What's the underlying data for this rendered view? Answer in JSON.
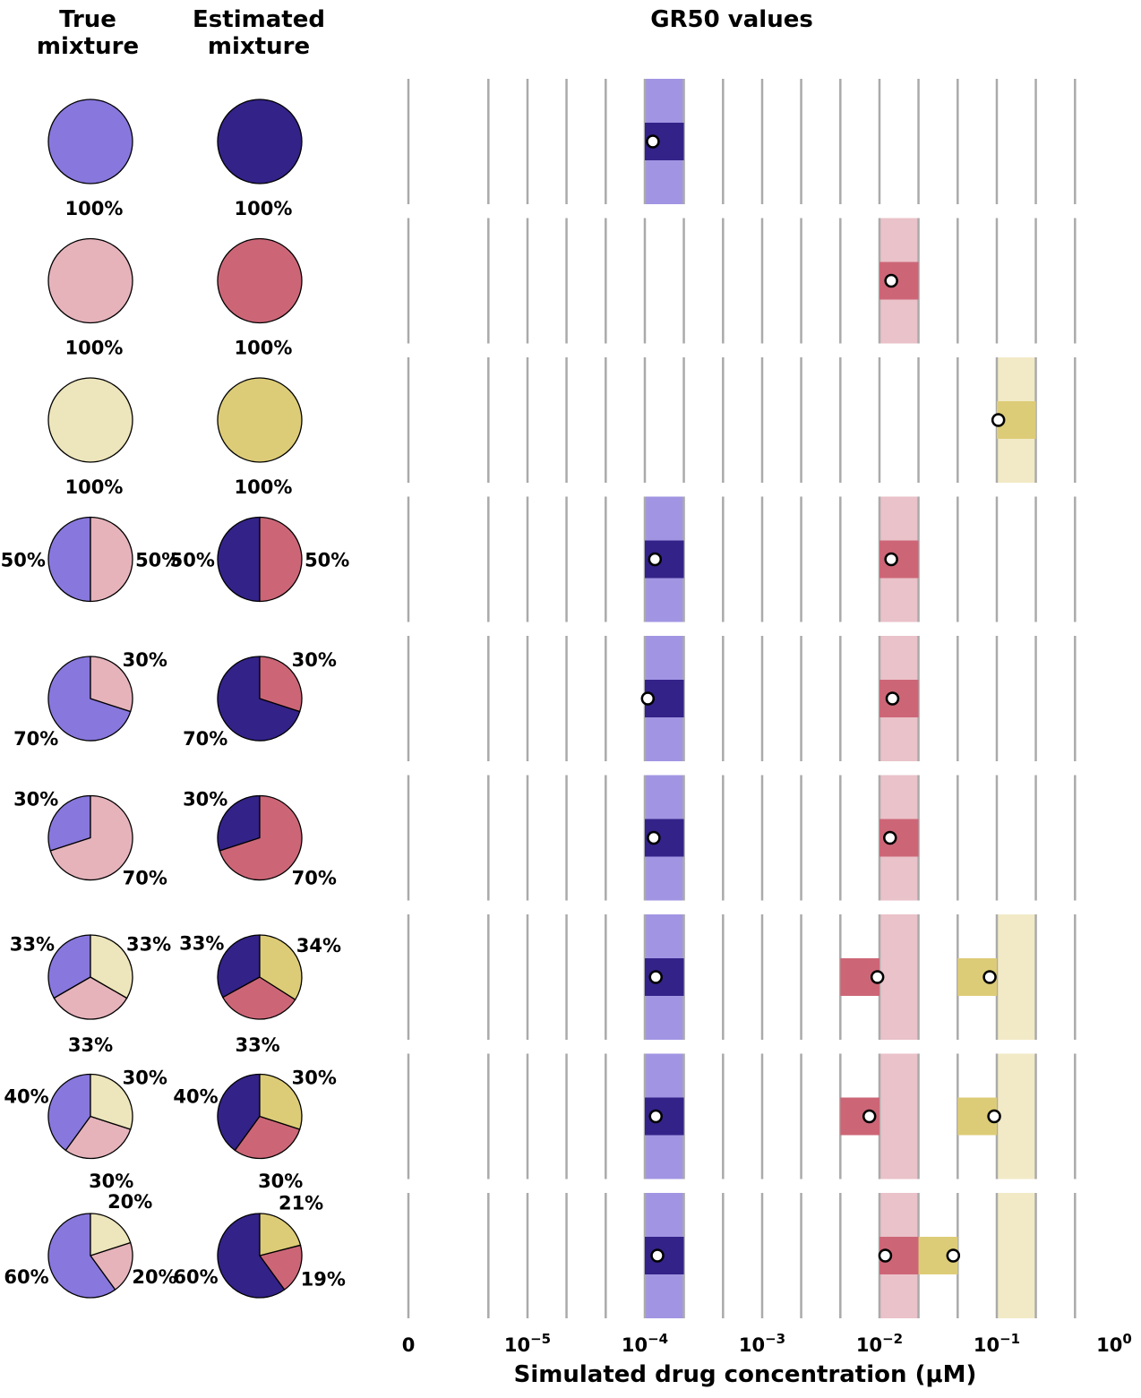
{
  "headers": {
    "true_mixture": [
      "True",
      "mixture"
    ],
    "estimated_mixture": [
      "Estimated",
      "mixture"
    ],
    "gr50": "GR50 values"
  },
  "colors": {
    "estimated": [
      "#332288",
      "#CC6677",
      "#DDCC77"
    ],
    "true": [
      "#8877DD",
      "#E6B3BB",
      "#EDE5BB"
    ],
    "band_light": [
      "#A195E3",
      "#EAC2C9",
      "#F2EAC6"
    ],
    "grid": "#AAAAAA",
    "marker_fill": "#FFFFFF",
    "marker_edge": "#000000"
  },
  "chart_data": {
    "type": "scatter",
    "xlabel": "Simulated  drug  concentration  (μM)",
    "xscale": "symlog",
    "xticks": [
      {
        "value": 0,
        "label": "0"
      },
      {
        "value": 1e-05,
        "label": "10",
        "exp": "−5"
      },
      {
        "value": 0.0001,
        "label": "10",
        "exp": "−4"
      },
      {
        "value": 0.001,
        "label": "10",
        "exp": "−3"
      },
      {
        "value": 0.01,
        "label": "10",
        "exp": "−2"
      },
      {
        "value": 0.1,
        "label": "10",
        "exp": "−1"
      },
      {
        "value": 1,
        "label": "10",
        "exp": "0"
      }
    ],
    "subpopulations": [
      {
        "true_gr50_range": [
          0.0001,
          0.000215
        ]
      },
      {
        "true_gr50_range": [
          0.01,
          0.0215
        ]
      },
      {
        "true_gr50_range": [
          0.1,
          0.215
        ]
      }
    ],
    "rows": [
      {
        "true_mix": [
          100,
          0,
          0
        ],
        "true_labels": [
          "100%"
        ],
        "est_mix": [
          100,
          0,
          0
        ],
        "est_labels": [
          "100%"
        ],
        "bands": [
          [
            0
          ],
          [],
          []
        ],
        "estimates": [
          {
            "pop": 0,
            "range": [
              0.0001,
              0.000215
            ],
            "value": 0.000117
          }
        ]
      },
      {
        "true_mix": [
          0,
          100,
          0
        ],
        "true_labels": [
          "100%"
        ],
        "est_mix": [
          0,
          100,
          0
        ],
        "est_labels": [
          "100%"
        ],
        "bands": [
          [
            1
          ],
          [],
          []
        ],
        "estimates": [
          {
            "pop": 1,
            "range": [
              0.01,
              0.0215
            ],
            "value": 0.0126
          }
        ]
      },
      {
        "true_mix": [
          0,
          0,
          100
        ],
        "true_labels": [
          "100%"
        ],
        "est_mix": [
          0,
          0,
          100
        ],
        "est_labels": [
          "100%"
        ],
        "bands": [
          [
            2
          ],
          [],
          []
        ],
        "estimates": [
          {
            "pop": 2,
            "range": [
              0.1,
              0.215
            ],
            "value": 0.103
          }
        ]
      },
      {
        "true_mix": [
          50,
          50,
          0
        ],
        "true_labels": [
          "50%",
          "50%"
        ],
        "est_mix": [
          50,
          50,
          0
        ],
        "est_labels": [
          "50%",
          "50%"
        ],
        "bands": [
          [
            0,
            1
          ],
          [],
          []
        ],
        "estimates": [
          {
            "pop": 0,
            "range": [
              0.0001,
              0.000215
            ],
            "value": 0.000122
          },
          {
            "pop": 1,
            "range": [
              0.01,
              0.0215
            ],
            "value": 0.0126
          }
        ]
      },
      {
        "true_mix": [
          70,
          30,
          0
        ],
        "true_labels": [
          "70%",
          "30%"
        ],
        "est_mix": [
          70,
          30,
          0
        ],
        "est_labels": [
          "70%",
          "30%"
        ],
        "bands": [
          [
            0,
            1
          ],
          [],
          []
        ],
        "estimates": [
          {
            "pop": 0,
            "range": [
              0.0001,
              0.000215
            ],
            "value": 0.000106
          },
          {
            "pop": 1,
            "range": [
              0.01,
              0.0215
            ],
            "value": 0.0129
          }
        ]
      },
      {
        "true_mix": [
          30,
          70,
          0
        ],
        "true_labels": [
          "30%",
          "70%"
        ],
        "est_mix": [
          30,
          70,
          0
        ],
        "est_labels": [
          "30%",
          "70%"
        ],
        "bands": [
          [
            0,
            1
          ],
          [],
          []
        ],
        "estimates": [
          {
            "pop": 0,
            "range": [
              0.0001,
              0.000215
            ],
            "value": 0.000119
          },
          {
            "pop": 1,
            "range": [
              0.01,
              0.0215
            ],
            "value": 0.0123
          }
        ]
      },
      {
        "true_mix": [
          33,
          33,
          33
        ],
        "true_labels": [
          "33%",
          "33%",
          "33%"
        ],
        "est_mix": [
          33,
          33,
          34
        ],
        "est_labels": [
          "33%",
          "33%",
          "34%"
        ],
        "bands": [
          [
            0,
            1,
            2
          ],
          [],
          []
        ],
        "estimates": [
          {
            "pop": 0,
            "range": [
              0.0001,
              0.000215
            ],
            "value": 0.000124
          },
          {
            "pop": 1,
            "range": [
              0.00464,
              0.01
            ],
            "value": 0.0096
          },
          {
            "pop": 2,
            "range": [
              0.0464,
              0.1
            ],
            "value": 0.087
          }
        ]
      },
      {
        "true_mix": [
          40,
          30,
          30
        ],
        "true_labels": [
          "40%",
          "30%",
          "30%"
        ],
        "est_mix": [
          40,
          30,
          30
        ],
        "est_labels": [
          "40%",
          "30%",
          "30%"
        ],
        "bands": [
          [
            0,
            1,
            2
          ],
          [],
          []
        ],
        "estimates": [
          {
            "pop": 0,
            "range": [
              0.0001,
              0.000215
            ],
            "value": 0.000124
          },
          {
            "pop": 1,
            "range": [
              0.00464,
              0.01
            ],
            "value": 0.0082
          },
          {
            "pop": 2,
            "range": [
              0.0464,
              0.1
            ],
            "value": 0.095
          }
        ]
      },
      {
        "true_mix": [
          60,
          20,
          20
        ],
        "true_labels": [
          "60%",
          "20%",
          "20%"
        ],
        "est_mix": [
          60,
          19,
          21
        ],
        "est_labels": [
          "60%",
          "19%",
          "21%"
        ],
        "bands": [
          [
            0,
            1,
            2
          ],
          [],
          []
        ],
        "estimates": [
          {
            "pop": 0,
            "range": [
              0.0001,
              0.000215
            ],
            "value": 0.000128
          },
          {
            "pop": 1,
            "range": [
              0.01,
              0.0215
            ],
            "value": 0.0112
          },
          {
            "pop": 2,
            "range": [
              0.0215,
              0.0464
            ],
            "value": 0.0425
          }
        ]
      }
    ]
  }
}
